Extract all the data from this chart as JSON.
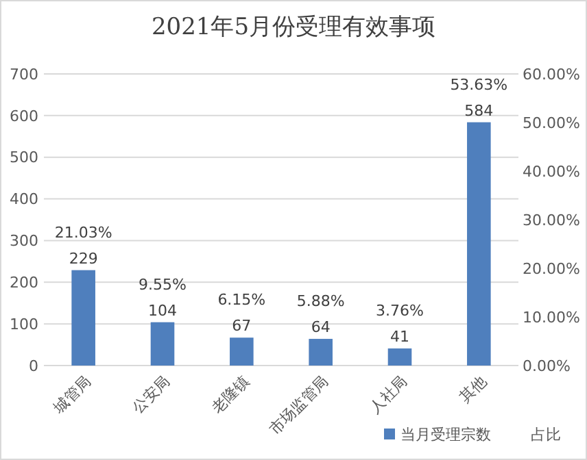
{
  "chart_data": {
    "type": "bar",
    "title": "2021年5月份受理有效事项",
    "categories": [
      "城管局",
      "公安局",
      "老隆镇",
      "市场监管局",
      "人社局",
      "其他"
    ],
    "series": [
      {
        "name": "当月受理宗数",
        "color": "#4f7fbd",
        "values": [
          229,
          104,
          67,
          64,
          41,
          584
        ]
      }
    ],
    "ylim": [
      0,
      700
    ],
    "yticks": [
      0,
      100,
      200,
      300,
      400,
      500,
      600,
      700
    ],
    "y2lim": [
      0,
      60
    ],
    "y2ticks": [
      {
        "value": 0,
        "label": "0.00%"
      },
      {
        "value": 10,
        "label": "10.00%"
      },
      {
        "value": 20,
        "label": "20.00%"
      },
      {
        "value": 30,
        "label": "30.00%"
      },
      {
        "value": 40,
        "label": "40.00%"
      },
      {
        "value": 50,
        "label": "50.00%"
      },
      {
        "value": 60,
        "label": "60.00%"
      }
    ],
    "annotations": [
      "21.03%",
      "9.55%",
      "6.15%",
      "5.88%",
      "3.76%",
      "53.63%",
      "占比"
    ],
    "grid": "y",
    "legend": "bottom right",
    "data_labels": true
  }
}
